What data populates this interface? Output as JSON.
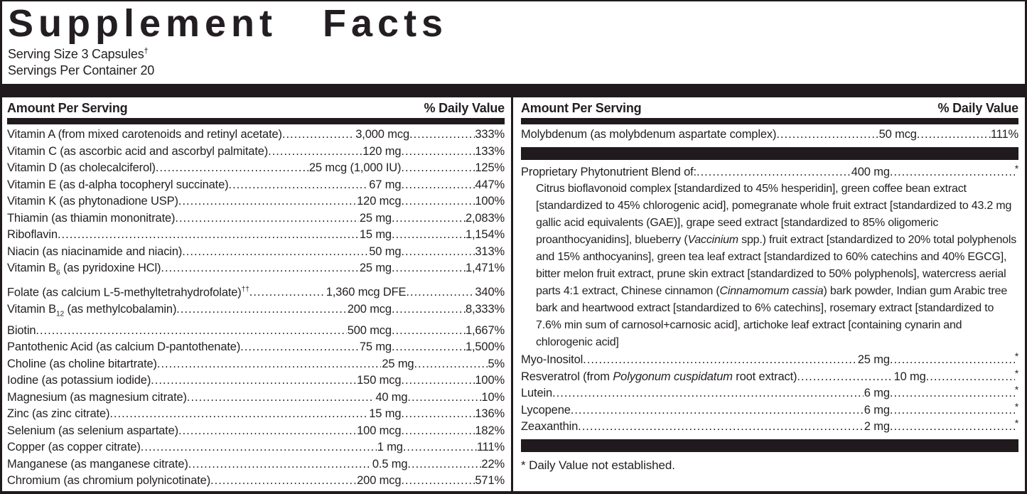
{
  "colors": {
    "bar": "#201a1e",
    "text": "#231e22",
    "background": "#ffffff"
  },
  "header": {
    "title": "Supplement Facts",
    "serving_size": "Serving Size 3 Capsules^†^",
    "servings_per_container": "Servings Per Container 20"
  },
  "table": {
    "amount_header": "Amount Per Serving",
    "dv_header": "% Daily Value",
    "left_rows": [
      {
        "name": "Vitamin A (from mixed carotenoids and retinyl acetate)",
        "amount": "3,000 mcg",
        "dv": "333%"
      },
      {
        "name": "Vitamin C (as ascorbic acid and ascorbyl palmitate)",
        "amount": "120 mg",
        "dv": "133%"
      },
      {
        "name": "Vitamin D (as cholecalciferol)",
        "amount": "25 mcg (1,000 IU)",
        "dv": "125%"
      },
      {
        "name": "Vitamin E (as d-alpha tocopheryl succinate)",
        "amount": "67 mg",
        "dv": "447%"
      },
      {
        "name": "Vitamin K (as phytonadione USP)",
        "amount": "120 mcg",
        "dv": "100%"
      },
      {
        "name": "Thiamin (as thiamin mononitrate)",
        "amount": "25 mg",
        "dv": "2,083%"
      },
      {
        "name": "Riboflavin",
        "amount": "15 mg",
        "dv": "1,154%"
      },
      {
        "name": "Niacin (as niacinamide and niacin)",
        "amount": "50 mg",
        "dv": "313%"
      },
      {
        "name": "Vitamin B~6~ (as pyridoxine HCl)",
        "amount": "25 mg",
        "dv": "1,471%"
      },
      {
        "name": "Folate (as calcium L-5-methyltetrahydrofolate)^††^",
        "amount": "1,360 mcg DFE",
        "dv": "340%"
      },
      {
        "name": "Vitamin B~12~ (as methylcobalamin)",
        "amount": "200 mcg",
        "dv": "8,333%"
      },
      {
        "name": "Biotin",
        "amount": "500 mcg",
        "dv": "1,667%"
      },
      {
        "name": "Pantothenic Acid (as calcium D-pantothenate)",
        "amount": "75 mg",
        "dv": "1,500%"
      },
      {
        "name": "Choline (as choline bitartrate)",
        "amount": "25 mg",
        "dv": "5%"
      },
      {
        "name": "Iodine (as potassium iodide)",
        "amount": "150 mcg",
        "dv": "100%"
      },
      {
        "name": "Magnesium (as magnesium citrate)",
        "amount": "40 mg",
        "dv": "10%"
      },
      {
        "name": "Zinc (as zinc citrate)",
        "amount": "15 mg",
        "dv": "136%"
      },
      {
        "name": "Selenium (as selenium aspartate)",
        "amount": "100 mcg",
        "dv": "182%"
      },
      {
        "name": "Copper (as copper citrate)",
        "amount": "1 mg",
        "dv": "111%"
      },
      {
        "name": "Manganese (as manganese citrate)",
        "amount": "0.5 mg",
        "dv": "22%"
      },
      {
        "name": "Chromium (as chromium polynicotinate)",
        "amount": "200 mcg",
        "dv": "571%"
      }
    ],
    "right_top_rows": [
      {
        "name": "Molybdenum (as molybdenum aspartate complex)",
        "amount": "50 mcg",
        "dv": "111%"
      }
    ],
    "blend_rows": [
      {
        "name": "Proprietary Phytonutrient Blend of:",
        "amount": "400 mg",
        "dv": "*"
      }
    ],
    "blend_description": "Citrus bioflavonoid complex [standardized to 45% hesperidin], green coffee bean extract [standardized to 45% chlorogenic acid], pomegranate whole fruit extract [standardized to 43.2 mg gallic acid equivalents (GAE)], grape seed extract [standardized to 85% oligomeric proanthocyanidins], blueberry (_Vaccinium_ spp.) fruit extract [standardized to 20% total polyphenols and 15% anthocyanins], green tea leaf extract [standardized to 60% catechins and 40% EGCG], bitter melon fruit extract, prune skin extract [standardized to 50% polyphenols], watercress aerial parts 4:1 extract, Chinese cinnamon (_Cinnamomum cassia_) bark powder, Indian gum Arabic tree bark and heartwood extract [standardized to 6% catechins], rosemary extract [standardized to 7.6% min sum of carnosol+carnosic acid], artichoke leaf extract [containing cynarin and chlorogenic acid]",
    "right_bottom_rows": [
      {
        "name": "Myo-Inositol",
        "amount": "25 mg",
        "dv": "*"
      },
      {
        "name": "Resveratrol (from _Polygonum cuspidatum_ root extract)",
        "amount": "10 mg",
        "dv": "*"
      },
      {
        "name": "Lutein",
        "amount": "6 mg",
        "dv": "*"
      },
      {
        "name": "Lycopene",
        "amount": "6 mg",
        "dv": "*"
      },
      {
        "name": "Zeaxanthin",
        "amount": "2 mg",
        "dv": "*"
      }
    ],
    "footnote": "* Daily Value not established."
  }
}
